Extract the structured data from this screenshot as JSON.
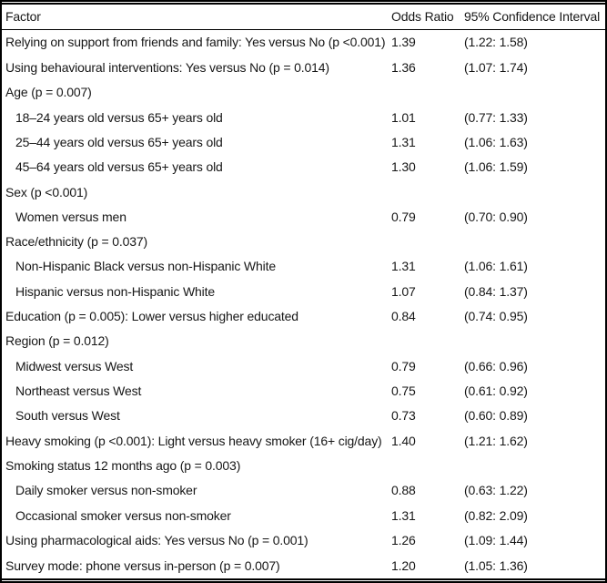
{
  "header": {
    "factor": "Factor",
    "odds_ratio": "Odds Ratio",
    "ci": "95% Confidence Interval"
  },
  "rows": [
    {
      "factor": "Relying on support from friends and family: Yes versus No (p <0.001)",
      "or": "1.39",
      "ci": "(1.22: 1.58)",
      "indent": false
    },
    {
      "factor": "Using behavioural interventions: Yes versus No (p = 0.014)",
      "or": "1.36",
      "ci": "(1.07: 1.74)",
      "indent": false
    },
    {
      "factor": "Age (p = 0.007)",
      "or": "",
      "ci": "",
      "indent": false
    },
    {
      "factor": "18–24 years old versus 65+ years old",
      "or": "1.01",
      "ci": "(0.77: 1.33)",
      "indent": true
    },
    {
      "factor": "25–44 years old versus 65+ years old",
      "or": "1.31",
      "ci": "(1.06: 1.63)",
      "indent": true
    },
    {
      "factor": "45–64 years old versus 65+ years old",
      "or": "1.30",
      "ci": "(1.06: 1.59)",
      "indent": true
    },
    {
      "factor": "Sex (p <0.001)",
      "or": "",
      "ci": "",
      "indent": false
    },
    {
      "factor": "Women versus men",
      "or": "0.79",
      "ci": "(0.70: 0.90)",
      "indent": true
    },
    {
      "factor": "Race/ethnicity (p = 0.037)",
      "or": "",
      "ci": "",
      "indent": false
    },
    {
      "factor": "Non-Hispanic Black versus non-Hispanic White",
      "or": "1.31",
      "ci": "(1.06: 1.61)",
      "indent": true
    },
    {
      "factor": "Hispanic versus non-Hispanic White",
      "or": "1.07",
      "ci": "(0.84: 1.37)",
      "indent": true
    },
    {
      "factor": "Education (p = 0.005): Lower versus higher educated",
      "or": "0.84",
      "ci": "(0.74: 0.95)",
      "indent": false
    },
    {
      "factor": "Region (p = 0.012)",
      "or": "",
      "ci": "",
      "indent": false
    },
    {
      "factor": "Midwest versus West",
      "or": "0.79",
      "ci": "(0.66: 0.96)",
      "indent": true
    },
    {
      "factor": "Northeast versus West",
      "or": "0.75",
      "ci": "(0.61: 0.92)",
      "indent": true
    },
    {
      "factor": "South versus West",
      "or": "0.73",
      "ci": "(0.60: 0.89)",
      "indent": true
    },
    {
      "factor": "Heavy smoking (p <0.001): Light versus heavy smoker (16+ cig/day)",
      "or": "1.40",
      "ci": "(1.21: 1.62)",
      "indent": false
    },
    {
      "factor": "Smoking status 12 months ago (p = 0.003)",
      "or": "",
      "ci": "",
      "indent": false
    },
    {
      "factor": "Daily smoker versus non-smoker",
      "or": "0.88",
      "ci": "(0.63: 1.22)",
      "indent": true
    },
    {
      "factor": "Occasional smoker versus non-smoker",
      "or": "1.31",
      "ci": "(0.82: 2.09)",
      "indent": true
    },
    {
      "factor": "Using pharmacological aids: Yes versus No (p = 0.001)",
      "or": "1.26",
      "ci": "(1.09: 1.44)",
      "indent": false
    },
    {
      "factor": "Survey mode: phone versus in-person (p = 0.007)",
      "or": "1.20",
      "ci": "(1.05: 1.36)",
      "indent": false
    }
  ],
  "colors": {
    "text": "#161616",
    "rule": "#000000",
    "background": "#ffffff"
  }
}
